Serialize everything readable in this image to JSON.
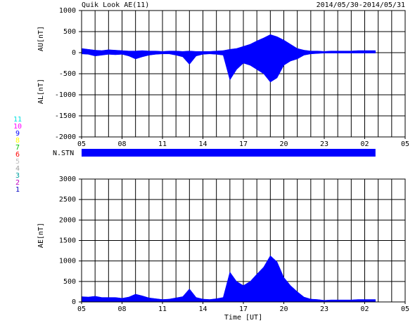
{
  "chart_data": [
    {
      "type": "area",
      "title": "Quik Look AE(11)",
      "subtitle": "2014/05/30-2014/05/31",
      "ylabels": [
        "AU[nT]",
        "AL[nT]"
      ],
      "xlim": [
        5,
        29
      ],
      "xticks": [
        {
          "value": 5,
          "label": "05"
        },
        {
          "value": 8,
          "label": "08"
        },
        11,
        14,
        17,
        20,
        23,
        {
          "value": 26,
          "label": "02"
        },
        {
          "value": 29,
          "label": "05"
        }
      ],
      "xminorticks": [
        5,
        6,
        7,
        8,
        9,
        10,
        11,
        12,
        13,
        14,
        15,
        16,
        17,
        18,
        19,
        20,
        21,
        22,
        23,
        24,
        25,
        26,
        27,
        28,
        29
      ],
      "ylim": [
        -2000,
        1000
      ],
      "yticks": [
        1000,
        500,
        0,
        -500,
        -1000,
        -1500,
        -2000
      ],
      "grid": true,
      "x": [
        5,
        5.5,
        6,
        6.5,
        7,
        7.5,
        8,
        8.5,
        9,
        9.5,
        10,
        10.5,
        11,
        11.5,
        12,
        12.5,
        13,
        13.5,
        14,
        14.5,
        15,
        15.5,
        16,
        16.5,
        17,
        17.5,
        18,
        18.5,
        19,
        19.5,
        20,
        20.5,
        21,
        21.5,
        22,
        22.5,
        23,
        23.5,
        24,
        24.5,
        25,
        25.5,
        26,
        26.5,
        26.8
      ],
      "series": [
        {
          "name": "AU",
          "color": "#0000ff",
          "values": [
            100,
            80,
            60,
            50,
            70,
            60,
            50,
            40,
            40,
            50,
            40,
            40,
            30,
            40,
            40,
            30,
            40,
            30,
            30,
            30,
            40,
            50,
            80,
            100,
            150,
            200,
            280,
            350,
            430,
            380,
            300,
            200,
            100,
            60,
            40,
            40,
            30,
            40,
            40,
            40,
            40,
            50,
            50,
            50,
            50
          ]
        },
        {
          "name": "AL",
          "color": "#0000ff",
          "values": [
            -30,
            -40,
            -80,
            -60,
            -40,
            -50,
            -40,
            -80,
            -150,
            -100,
            -60,
            -40,
            -30,
            -30,
            -60,
            -100,
            -280,
            -80,
            -40,
            -30,
            -40,
            -60,
            -650,
            -400,
            -250,
            -300,
            -400,
            -500,
            -700,
            -600,
            -300,
            -200,
            -150,
            -60,
            -30,
            -20,
            -10,
            -10,
            -10,
            -10,
            -10,
            -10,
            -10,
            -10,
            -10
          ]
        }
      ]
    },
    {
      "type": "stations",
      "label": "N.STN",
      "xlim": [
        5,
        29
      ],
      "xrange": [
        5,
        26.8
      ],
      "color": "#0000ff",
      "stations": [
        {
          "label": "11",
          "color": "#00e0e0"
        },
        {
          "label": "10",
          "color": "#ff00ff"
        },
        {
          "label": "9",
          "color": "#0000ff"
        },
        {
          "label": "8",
          "color": "#ffff00"
        },
        {
          "label": "7",
          "color": "#00c000"
        },
        {
          "label": "6",
          "color": "#ff0000"
        },
        {
          "label": "5",
          "color": "#c0c0c0"
        },
        {
          "label": "4",
          "color": "#a0a0a0"
        },
        {
          "label": "3",
          "color": "#00a0a0"
        },
        {
          "label": "2",
          "color": "#c000c0"
        },
        {
          "label": "1",
          "color": "#0000c0"
        }
      ]
    },
    {
      "type": "area",
      "ylabel": "AE[nT]",
      "xlabel": "Time [UT]",
      "xlim": [
        5,
        29
      ],
      "xticks": [
        {
          "value": 5,
          "label": "05"
        },
        {
          "value": 8,
          "label": "08"
        },
        11,
        14,
        17,
        20,
        23,
        {
          "value": 26,
          "label": "02"
        },
        {
          "value": 29,
          "label": "05"
        }
      ],
      "xminorticks": [
        5,
        6,
        7,
        8,
        9,
        10,
        11,
        12,
        13,
        14,
        15,
        16,
        17,
        18,
        19,
        20,
        21,
        22,
        23,
        24,
        25,
        26,
        27,
        28,
        29
      ],
      "ylim": [
        0,
        3000
      ],
      "yticks": [
        3000,
        2500,
        2000,
        1500,
        1000,
        500,
        0
      ],
      "grid": true,
      "x": [
        5,
        5.5,
        6,
        6.5,
        7,
        7.5,
        8,
        8.5,
        9,
        9.5,
        10,
        10.5,
        11,
        11.5,
        12,
        12.5,
        13,
        13.5,
        14,
        14.5,
        15,
        15.5,
        16,
        16.5,
        17,
        17.5,
        18,
        18.5,
        19,
        19.5,
        20,
        20.5,
        21,
        21.5,
        22,
        22.5,
        23,
        23.5,
        24,
        24.5,
        25,
        25.5,
        26,
        26.5,
        26.8
      ],
      "series": [
        {
          "name": "AE",
          "color": "#0000ff",
          "values": [
            130,
            120,
            140,
            110,
            110,
            110,
            90,
            120,
            190,
            150,
            100,
            80,
            60,
            70,
            100,
            130,
            320,
            110,
            70,
            60,
            80,
            110,
            730,
            500,
            400,
            500,
            680,
            850,
            1130,
            980,
            600,
            400,
            250,
            120,
            70,
            60,
            40,
            50,
            50,
            50,
            50,
            60,
            60,
            60,
            60
          ]
        }
      ]
    }
  ]
}
